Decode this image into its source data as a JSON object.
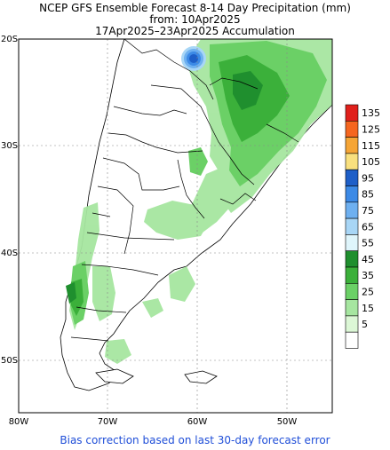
{
  "header": {
    "line1": "NCEP GFS Ensemble Forecast 8-14 Day Precipitation (mm)",
    "line2": "from: 10Apr2025",
    "line3": "17Apr2025–23Apr2025 Accumulation"
  },
  "map": {
    "lat_labels": [
      "20S",
      "30S",
      "40S",
      "50S"
    ],
    "lon_labels": [
      "80W",
      "70W",
      "60W",
      "50W"
    ]
  },
  "legend": {
    "levels": [
      {
        "label": "135",
        "color": "#e0201b"
      },
      {
        "label": "125",
        "color": "#f5661f"
      },
      {
        "label": "115",
        "color": "#f5a536"
      },
      {
        "label": "105",
        "color": "#f9e07e"
      },
      {
        "label": "95",
        "color": "#1e5fc8"
      },
      {
        "label": "85",
        "color": "#3c8ae6"
      },
      {
        "label": "75",
        "color": "#6eb0f0"
      },
      {
        "label": "65",
        "color": "#a8d6f6"
      },
      {
        "label": "55",
        "color": "#dff5fb"
      },
      {
        "label": "45",
        "color": "#1f8f2e"
      },
      {
        "label": "35",
        "color": "#3bb03a"
      },
      {
        "label": "25",
        "color": "#6bd066"
      },
      {
        "label": "15",
        "color": "#a6e6a0"
      },
      {
        "label": "5",
        "color": "#dcf7d6"
      },
      {
        "label": "",
        "color": "#ffffff"
      }
    ]
  },
  "footer": {
    "text": "Bias correction based on last 30-day forecast error"
  }
}
